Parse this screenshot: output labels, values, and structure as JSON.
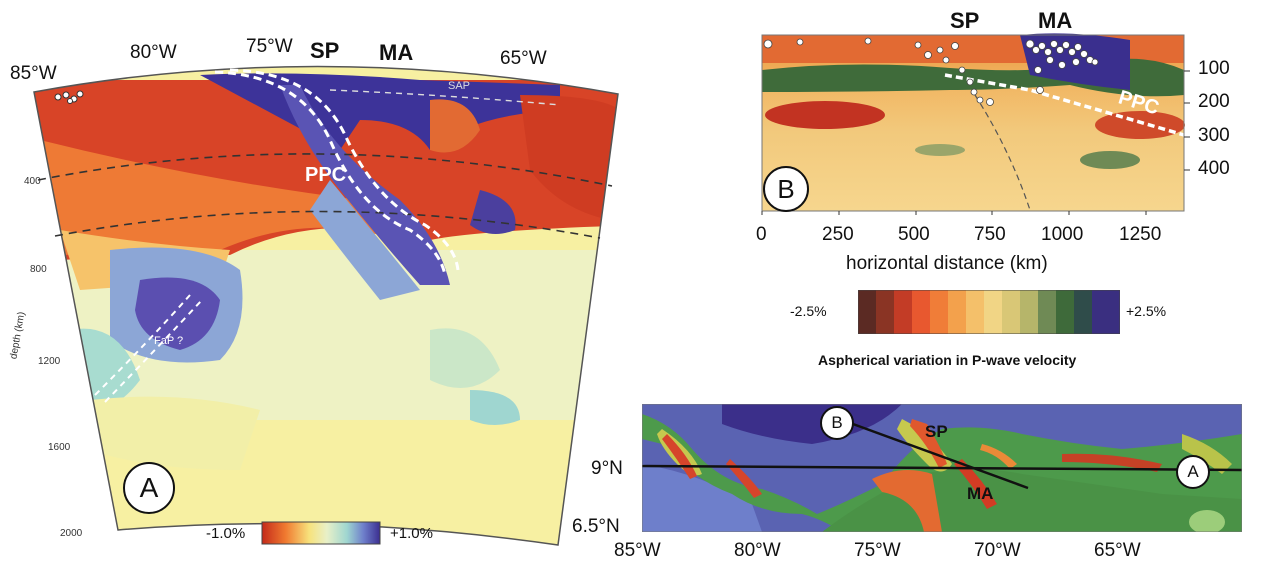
{
  "panel_a": {
    "badge": "A",
    "lon_labels": [
      "85°W",
      "80°W",
      "75°W",
      "65°W"
    ],
    "sp_label": "SP",
    "ma_label": "MA",
    "sap_label": "SAP",
    "ppc_label": "PPC",
    "fap_label": "FaP ?",
    "depth_ticks": [
      "400",
      "800",
      "1200",
      "1600",
      "2000"
    ],
    "depth_axis_label": "depth (km)",
    "colorbar_min": "-1.0%",
    "colorbar_max": "+1.0%"
  },
  "panel_b": {
    "badge": "B",
    "sp_label": "SP",
    "ma_label": "MA",
    "ppc_label": "PPC",
    "depth_ticks": [
      "100",
      "200",
      "300",
      "400"
    ],
    "distance_ticks": [
      "0",
      "250",
      "500",
      "750",
      "1000",
      "1250"
    ],
    "xlabel": "horizontal distance (km)",
    "colorbar_min": "-2.5%",
    "colorbar_max": "+2.5%",
    "colorbar_title": "Aspherical variation in P-wave velocity"
  },
  "map": {
    "lat_labels": [
      "9°N",
      "6.5°N"
    ],
    "lon_labels": [
      "85°W",
      "80°W",
      "75°W",
      "70°W",
      "65°W"
    ],
    "sp_label": "SP",
    "ma_label": "MA",
    "marker_a": "A",
    "marker_b": "B"
  },
  "colors": {
    "slow_dark": "#b8321e",
    "slow": "#e2552e",
    "neutral_warm": "#f4d37a",
    "neutral_light": "#eef0c0",
    "fast": "#8fa9d6",
    "fast_dark": "#3b2f92",
    "green_dark": "#2f5a2f",
    "profile_bg": "#f0c179"
  }
}
